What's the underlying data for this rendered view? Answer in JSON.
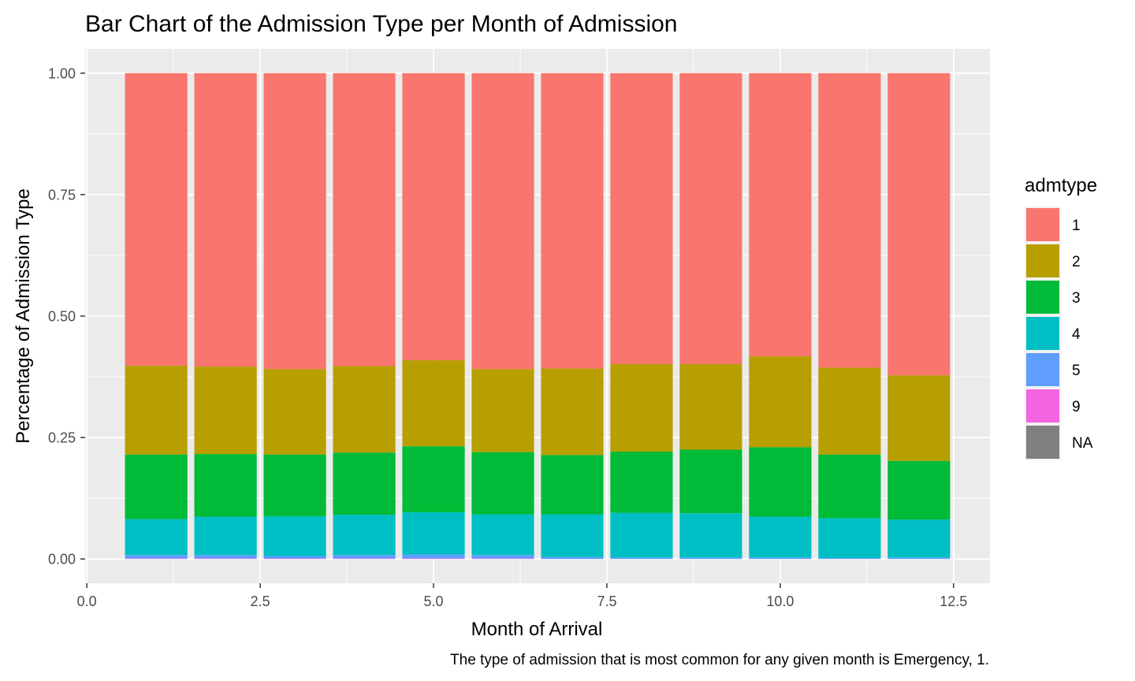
{
  "chart_data": {
    "type": "bar",
    "stacked": true,
    "position": "fill",
    "title": "Bar Chart of the Admission Type per Month of Admission",
    "xlabel": "Month of Arrival",
    "ylabel": "Percentage of Admission Type",
    "caption": "The type of admission that is most common for any given month is Emergency, 1.",
    "xlim": [
      -0.025,
      13.025
    ],
    "ylim": [
      -0.05,
      1.05
    ],
    "x_ticks": [
      0,
      2.5,
      5,
      7.5,
      10,
      12.5
    ],
    "x_tick_labels": [
      "0.0",
      "2.5",
      "5.0",
      "7.5",
      "10.0",
      "12.5"
    ],
    "y_ticks": [
      0,
      0.25,
      0.5,
      0.75,
      1
    ],
    "y_tick_labels": [
      "0.00",
      "0.25",
      "0.50",
      "0.75",
      "1.00"
    ],
    "grid": true,
    "panel_background": "#ebebeb",
    "bar_width": 0.9,
    "x": [
      1,
      2,
      3,
      4,
      5,
      6,
      7,
      8,
      9,
      10,
      11,
      12
    ],
    "stack_order_bottom_to_top": [
      "NA",
      "9",
      "5",
      "4",
      "3",
      "2",
      "1"
    ],
    "series": [
      {
        "name": "1",
        "color": "#F8766D",
        "values": [
          0.602,
          0.604,
          0.609,
          0.603,
          0.591,
          0.609,
          0.608,
          0.599,
          0.599,
          0.583,
          0.606,
          0.622
        ]
      },
      {
        "name": "2",
        "color": "#B79F00",
        "values": [
          0.183,
          0.18,
          0.176,
          0.178,
          0.177,
          0.171,
          0.178,
          0.18,
          0.176,
          0.187,
          0.179,
          0.176
        ]
      },
      {
        "name": "3",
        "color": "#00BA38",
        "values": [
          0.133,
          0.129,
          0.127,
          0.128,
          0.136,
          0.128,
          0.122,
          0.126,
          0.131,
          0.143,
          0.131,
          0.121
        ]
      },
      {
        "name": "4",
        "color": "#00BFC4",
        "values": [
          0.074,
          0.079,
          0.082,
          0.083,
          0.087,
          0.084,
          0.088,
          0.092,
          0.091,
          0.084,
          0.082,
          0.078
        ]
      },
      {
        "name": "5",
        "color": "#619CFF",
        "values": [
          0.007,
          0.007,
          0.005,
          0.007,
          0.008,
          0.007,
          0.004,
          0.003,
          0.003,
          0.003,
          0.002,
          0.003
        ]
      },
      {
        "name": "9",
        "color": "#F564E3",
        "values": [
          0.001,
          0.001,
          0.001,
          0.001,
          0.001,
          0.001,
          0,
          0,
          0,
          0,
          0,
          0
        ]
      },
      {
        "name": "NA",
        "color": "#808080",
        "values": [
          0,
          0,
          0,
          0,
          0,
          0,
          0,
          0,
          0,
          0,
          0,
          0
        ]
      }
    ],
    "legend": {
      "title": "admtype",
      "placement": "right",
      "entries": [
        "1",
        "2",
        "3",
        "4",
        "5",
        "9",
        "NA"
      ]
    }
  }
}
